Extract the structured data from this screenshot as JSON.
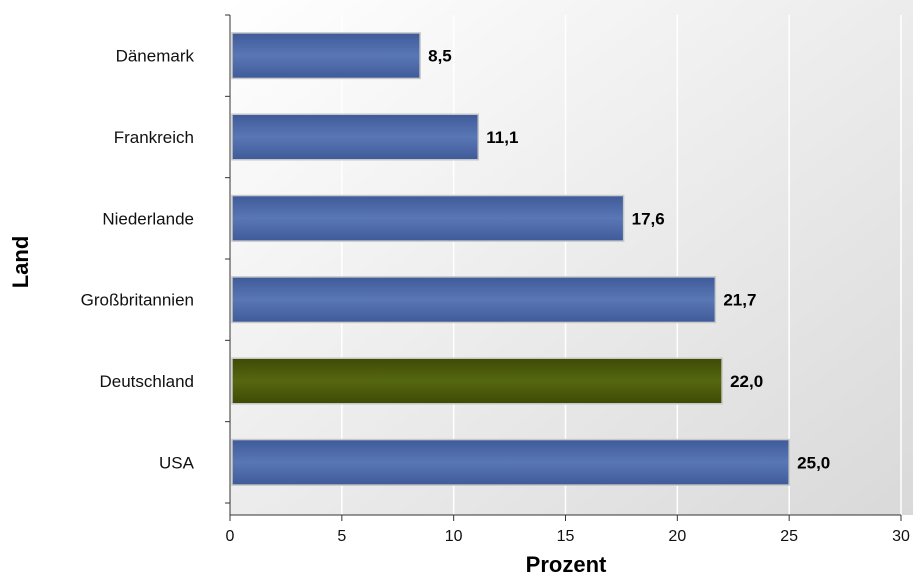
{
  "chart_data": {
    "type": "bar",
    "orientation": "horizontal",
    "categories": [
      "Dänemark",
      "Frankreich",
      "Niederlande",
      "Großbritannien",
      "Deutschland",
      "USA"
    ],
    "values": [
      8.5,
      11.1,
      17.6,
      21.7,
      22.0,
      25.0
    ],
    "value_labels": [
      "8,5",
      "11,1",
      "17,6",
      "21,7",
      "22,0",
      "25,0"
    ],
    "highlight_category": "Deutschland",
    "xlabel": "Prozent",
    "ylabel": "Land",
    "xlim": [
      0,
      30
    ],
    "xticks": [
      0,
      5,
      10,
      15,
      20,
      25,
      30
    ],
    "grid": "vertical",
    "legend": "none",
    "colors": {
      "bar": "#4a67a6",
      "highlight_bar": "#4a5a0a",
      "background": "#eeeeee"
    }
  }
}
